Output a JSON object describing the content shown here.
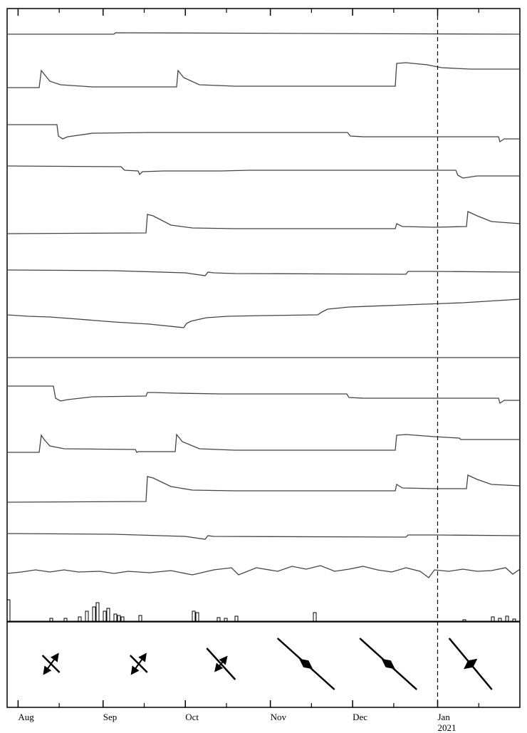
{
  "chart_data": {
    "type": "line",
    "title": "",
    "xlabel": "",
    "ylabel": "",
    "x_axis": {
      "type": "date",
      "range": [
        "2020-07-28",
        "2021-01-31"
      ],
      "ticks": [
        {
          "date": "2020-08-01",
          "label": "Aug"
        },
        {
          "date": "2020-09-01",
          "label": "Sep"
        },
        {
          "date": "2020-10-01",
          "label": "Oct"
        },
        {
          "date": "2020-11-01",
          "label": "Nov"
        },
        {
          "date": "2020-12-01",
          "label": "Dec"
        },
        {
          "date": "2021-01-01",
          "label": "Jan",
          "sublabel": "2021"
        }
      ]
    },
    "marker_line": {
      "date": "2021-01-01",
      "style": "dashed"
    },
    "grid": false,
    "legend": "none",
    "series": [
      {
        "values": [
          [
            0,
            0
          ],
          [
            150,
            0
          ],
          [
            152,
            -2
          ],
          [
            720,
            0
          ]
        ]
      },
      {
        "values": [
          [
            0,
            -1
          ],
          [
            45,
            -1
          ],
          [
            48,
            -25
          ],
          [
            52,
            -20
          ],
          [
            60,
            -10
          ],
          [
            75,
            -5
          ],
          [
            120,
            -2
          ],
          [
            238,
            -2
          ],
          [
            240,
            -25
          ],
          [
            248,
            -15
          ],
          [
            270,
            -5
          ],
          [
            320,
            -3
          ],
          [
            545,
            -3
          ],
          [
            547,
            -35
          ],
          [
            560,
            -36
          ],
          [
            590,
            -33
          ],
          [
            610,
            -29
          ],
          [
            650,
            -27
          ],
          [
            720,
            -27
          ]
        ]
      },
      {
        "values": [
          [
            0,
            0
          ],
          [
            70,
            0
          ],
          [
            72,
            16
          ],
          [
            78,
            20
          ],
          [
            85,
            17
          ],
          [
            120,
            12
          ],
          [
            200,
            11
          ],
          [
            478,
            11
          ],
          [
            482,
            16
          ],
          [
            500,
            17
          ],
          [
            600,
            17
          ],
          [
            690,
            17
          ],
          [
            692,
            24
          ],
          [
            698,
            20
          ],
          [
            720,
            20
          ]
        ]
      },
      {
        "values": [
          [
            0,
            0
          ],
          [
            160,
            1
          ],
          [
            165,
            6
          ],
          [
            184,
            7
          ],
          [
            186,
            12
          ],
          [
            190,
            8
          ],
          [
            220,
            7
          ],
          [
            300,
            7
          ],
          [
            340,
            6
          ],
          [
            630,
            6
          ],
          [
            633,
            13
          ],
          [
            640,
            17
          ],
          [
            660,
            14
          ],
          [
            720,
            14
          ]
        ]
      },
      {
        "values": [
          [
            0,
            0
          ],
          [
            195,
            -1
          ],
          [
            197,
            -27
          ],
          [
            205,
            -25
          ],
          [
            230,
            -12
          ],
          [
            260,
            -8
          ],
          [
            320,
            -7
          ],
          [
            545,
            -7
          ],
          [
            547,
            -14
          ],
          [
            555,
            -10
          ],
          [
            600,
            -9
          ],
          [
            645,
            -10
          ],
          [
            647,
            -31
          ],
          [
            660,
            -25
          ],
          [
            680,
            -17
          ],
          [
            720,
            -14
          ]
        ]
      },
      {
        "values": [
          [
            0,
            0
          ],
          [
            150,
            1
          ],
          [
            250,
            4
          ],
          [
            278,
            8
          ],
          [
            282,
            3
          ],
          [
            290,
            4
          ],
          [
            320,
            5
          ],
          [
            560,
            6
          ],
          [
            563,
            2
          ],
          [
            600,
            2
          ],
          [
            720,
            3
          ]
        ]
      },
      {
        "values": [
          [
            0,
            0
          ],
          [
            30,
            2
          ],
          [
            60,
            3
          ],
          [
            100,
            6
          ],
          [
            150,
            10
          ],
          [
            200,
            13
          ],
          [
            248,
            18
          ],
          [
            252,
            12
          ],
          [
            258,
            9
          ],
          [
            262,
            8
          ],
          [
            280,
            4
          ],
          [
            310,
            2
          ],
          [
            360,
            1
          ],
          [
            436,
            0
          ],
          [
            442,
            -4
          ],
          [
            450,
            -8
          ],
          [
            480,
            -11
          ],
          [
            560,
            -14
          ],
          [
            640,
            -17
          ],
          [
            720,
            -22
          ]
        ]
      },
      {
        "values": [
          [
            0,
            0
          ],
          [
            720,
            0
          ]
        ]
      },
      {
        "values": [
          [
            0,
            0
          ],
          [
            65,
            0
          ],
          [
            68,
            17
          ],
          [
            75,
            21
          ],
          [
            85,
            19
          ],
          [
            120,
            15
          ],
          [
            195,
            14
          ],
          [
            197,
            9
          ],
          [
            205,
            9
          ],
          [
            240,
            10
          ],
          [
            300,
            11
          ],
          [
            477,
            11
          ],
          [
            480,
            16
          ],
          [
            500,
            17
          ],
          [
            600,
            17
          ],
          [
            690,
            17
          ],
          [
            692,
            24
          ],
          [
            698,
            20
          ],
          [
            720,
            20
          ]
        ]
      },
      {
        "values": [
          [
            0,
            0
          ],
          [
            45,
            0
          ],
          [
            48,
            -24
          ],
          [
            52,
            -18
          ],
          [
            60,
            -9
          ],
          [
            80,
            -5
          ],
          [
            180,
            -4
          ],
          [
            182,
            0
          ],
          [
            184,
            -1
          ],
          [
            236,
            -1
          ],
          [
            238,
            -25
          ],
          [
            246,
            -15
          ],
          [
            270,
            -5
          ],
          [
            320,
            -3
          ],
          [
            545,
            -3
          ],
          [
            547,
            -24
          ],
          [
            560,
            -25
          ],
          [
            600,
            -22
          ],
          [
            635,
            -20
          ],
          [
            637,
            -18
          ],
          [
            720,
            -18
          ]
        ]
      },
      {
        "values": [
          [
            0,
            0
          ],
          [
            195,
            -1
          ],
          [
            197,
            -36
          ],
          [
            205,
            -34
          ],
          [
            230,
            -22
          ],
          [
            260,
            -17
          ],
          [
            320,
            -16
          ],
          [
            545,
            -16
          ],
          [
            547,
            -25
          ],
          [
            555,
            -20
          ],
          [
            600,
            -19
          ],
          [
            645,
            -19
          ],
          [
            647,
            -38
          ],
          [
            660,
            -32
          ],
          [
            680,
            -25
          ],
          [
            720,
            -23
          ]
        ]
      },
      {
        "values": [
          [
            0,
            0
          ],
          [
            150,
            1
          ],
          [
            250,
            4
          ],
          [
            278,
            8
          ],
          [
            282,
            3
          ],
          [
            290,
            4
          ],
          [
            560,
            5
          ],
          [
            563,
            2
          ],
          [
            600,
            2
          ],
          [
            720,
            3
          ]
        ]
      },
      {
        "values": [
          [
            0,
            0
          ],
          [
            20,
            -2
          ],
          [
            40,
            -5
          ],
          [
            60,
            -2
          ],
          [
            80,
            -5
          ],
          [
            100,
            -2
          ],
          [
            130,
            -3
          ],
          [
            150,
            0
          ],
          [
            170,
            -3
          ],
          [
            200,
            -1
          ],
          [
            230,
            -4
          ],
          [
            260,
            2
          ],
          [
            290,
            -5
          ],
          [
            315,
            -8
          ],
          [
            325,
            2
          ],
          [
            350,
            -8
          ],
          [
            380,
            -3
          ],
          [
            400,
            -10
          ],
          [
            420,
            -6
          ],
          [
            440,
            -11
          ],
          [
            460,
            -3
          ],
          [
            480,
            -6
          ],
          [
            500,
            -10
          ],
          [
            520,
            -5
          ],
          [
            540,
            -2
          ],
          [
            560,
            -8
          ],
          [
            580,
            -3
          ],
          [
            592,
            6
          ],
          [
            600,
            -5
          ],
          [
            620,
            -3
          ],
          [
            640,
            -6
          ],
          [
            660,
            -3
          ],
          [
            680,
            -4
          ],
          [
            700,
            -8
          ],
          [
            710,
            1
          ],
          [
            720,
            -6
          ]
        ]
      }
    ],
    "histogram": {
      "bars": [
        [
          0,
          30
        ],
        [
          60,
          4
        ],
        [
          80,
          4
        ],
        [
          100,
          6
        ],
        [
          110,
          14
        ],
        [
          120,
          20
        ],
        [
          125,
          26
        ],
        [
          135,
          14
        ],
        [
          140,
          18
        ],
        [
          150,
          10
        ],
        [
          155,
          8
        ],
        [
          160,
          6
        ],
        [
          185,
          8
        ],
        [
          260,
          14
        ],
        [
          265,
          12
        ],
        [
          295,
          5
        ],
        [
          305,
          4
        ],
        [
          320,
          7
        ],
        [
          430,
          12
        ],
        [
          640,
          2
        ],
        [
          680,
          6
        ],
        [
          690,
          4
        ],
        [
          700,
          7
        ],
        [
          710,
          3
        ]
      ]
    },
    "vectors": [
      {
        "date": "2020-08-13",
        "main_axis": [
          [
            -12,
            -12
          ],
          [
            12,
            12
          ]
        ],
        "arrows": [
          [
            -10,
            14
          ],
          [
            10,
            -14
          ]
        ]
      },
      {
        "date": "2020-09-14",
        "main_axis": [
          [
            -12,
            -12
          ],
          [
            12,
            12
          ]
        ],
        "arrows": [
          [
            -10,
            14
          ],
          [
            10,
            -14
          ]
        ]
      },
      {
        "date": "2020-10-14",
        "main_axis": [
          [
            -20,
            -22
          ],
          [
            20,
            22
          ]
        ],
        "arrows": [
          [
            -8,
            10
          ],
          [
            8,
            -10
          ]
        ]
      },
      {
        "date": "2020-11-14",
        "main_axis": [
          [
            -40,
            -36
          ],
          [
            40,
            36
          ]
        ],
        "arrows": [
          [
            -8,
            -6
          ],
          [
            8,
            6
          ]
        ]
      },
      {
        "date": "2020-12-14",
        "main_axis": [
          [
            -40,
            -36
          ],
          [
            40,
            36
          ]
        ],
        "arrows": [
          [
            -8,
            -6
          ],
          [
            8,
            6
          ]
        ]
      },
      {
        "date": "2021-01-13",
        "main_axis": [
          [
            -30,
            -36
          ],
          [
            30,
            36
          ]
        ],
        "arrows": [
          [
            -8,
            6
          ],
          [
            8,
            -6
          ]
        ]
      }
    ]
  }
}
